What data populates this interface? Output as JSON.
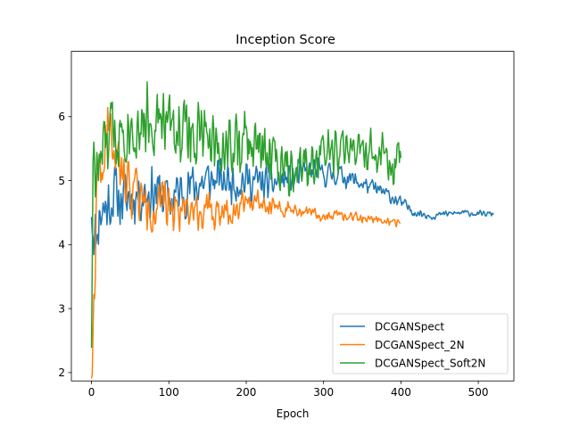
{
  "chart_data": {
    "type": "line",
    "title": "Inception Score",
    "xlabel": "Epoch",
    "ylabel": "",
    "xlim": [
      -26,
      546
    ],
    "ylim": [
      1.87,
      7.02
    ],
    "xticks": [
      0,
      100,
      200,
      300,
      400,
      500
    ],
    "yticks": [
      2,
      3,
      4,
      5,
      6
    ],
    "grid": false,
    "legend_position": "lower right",
    "series": [
      {
        "name": "DCGANSpect",
        "color": "#1f77b4",
        "length": 521,
        "seed": 11,
        "keypoints": [
          [
            0,
            4.6
          ],
          [
            3,
            4.2
          ],
          [
            6,
            4.1
          ],
          [
            10,
            4.5
          ],
          [
            20,
            4.6
          ],
          [
            30,
            4.8
          ],
          [
            40,
            4.7
          ],
          [
            60,
            4.8
          ],
          [
            80,
            4.85
          ],
          [
            100,
            4.7
          ],
          [
            120,
            4.85
          ],
          [
            150,
            5.0
          ],
          [
            170,
            5.0
          ],
          [
            200,
            5.0
          ],
          [
            230,
            4.95
          ],
          [
            260,
            5.05
          ],
          [
            290,
            5.15
          ],
          [
            300,
            5.1
          ],
          [
            320,
            5.1
          ],
          [
            340,
            5.0
          ],
          [
            360,
            4.9
          ],
          [
            380,
            4.8
          ],
          [
            400,
            4.65
          ],
          [
            420,
            4.5
          ],
          [
            440,
            4.45
          ],
          [
            460,
            4.48
          ],
          [
            480,
            4.5
          ],
          [
            500,
            4.48
          ],
          [
            520,
            4.48
          ]
        ],
        "noise": [
          [
            0,
            0.35
          ],
          [
            100,
            0.3
          ],
          [
            200,
            0.22
          ],
          [
            300,
            0.14
          ],
          [
            350,
            0.1
          ],
          [
            400,
            0.07
          ],
          [
            450,
            0.035
          ],
          [
            520,
            0.03
          ]
        ]
      },
      {
        "name": "DCGANSpect_2N",
        "color": "#ff7f0e",
        "length": 400,
        "seed": 22,
        "keypoints": [
          [
            0,
            2.1
          ],
          [
            2,
            2.5
          ],
          [
            4,
            3.5
          ],
          [
            6,
            4.6
          ],
          [
            10,
            5.0
          ],
          [
            15,
            5.2
          ],
          [
            22,
            5.8
          ],
          [
            30,
            5.4
          ],
          [
            40,
            5.0
          ],
          [
            55,
            4.9
          ],
          [
            70,
            4.6
          ],
          [
            90,
            4.6
          ],
          [
            120,
            4.6
          ],
          [
            150,
            4.5
          ],
          [
            180,
            4.55
          ],
          [
            200,
            4.7
          ],
          [
            220,
            4.7
          ],
          [
            250,
            4.55
          ],
          [
            280,
            4.5
          ],
          [
            300,
            4.45
          ],
          [
            320,
            4.45
          ],
          [
            350,
            4.42
          ],
          [
            370,
            4.4
          ],
          [
            400,
            4.33
          ]
        ],
        "noise": [
          [
            0,
            0.4
          ],
          [
            40,
            0.35
          ],
          [
            100,
            0.25
          ],
          [
            200,
            0.15
          ],
          [
            260,
            0.07
          ],
          [
            400,
            0.04
          ]
        ]
      },
      {
        "name": "DCGANSpect_Soft2N",
        "color": "#2ca02c",
        "length": 401,
        "seed": 33,
        "keypoints": [
          [
            0,
            2.6
          ],
          [
            2,
            5.5
          ],
          [
            5,
            5.0
          ],
          [
            10,
            5.2
          ],
          [
            20,
            5.6
          ],
          [
            40,
            5.9
          ],
          [
            60,
            5.9
          ],
          [
            80,
            6.0
          ],
          [
            100,
            5.85
          ],
          [
            120,
            5.8
          ],
          [
            140,
            5.7
          ],
          [
            160,
            5.6
          ],
          [
            180,
            5.55
          ],
          [
            200,
            5.55
          ],
          [
            220,
            5.5
          ],
          [
            240,
            5.35
          ],
          [
            260,
            5.3
          ],
          [
            280,
            5.35
          ],
          [
            300,
            5.4
          ],
          [
            320,
            5.45
          ],
          [
            340,
            5.5
          ],
          [
            360,
            5.4
          ],
          [
            380,
            5.4
          ],
          [
            390,
            5.0
          ],
          [
            395,
            5.3
          ],
          [
            400,
            5.4
          ]
        ],
        "noise": [
          [
            0,
            0.45
          ],
          [
            100,
            0.4
          ],
          [
            200,
            0.4
          ],
          [
            300,
            0.3
          ],
          [
            400,
            0.25
          ]
        ]
      }
    ]
  }
}
